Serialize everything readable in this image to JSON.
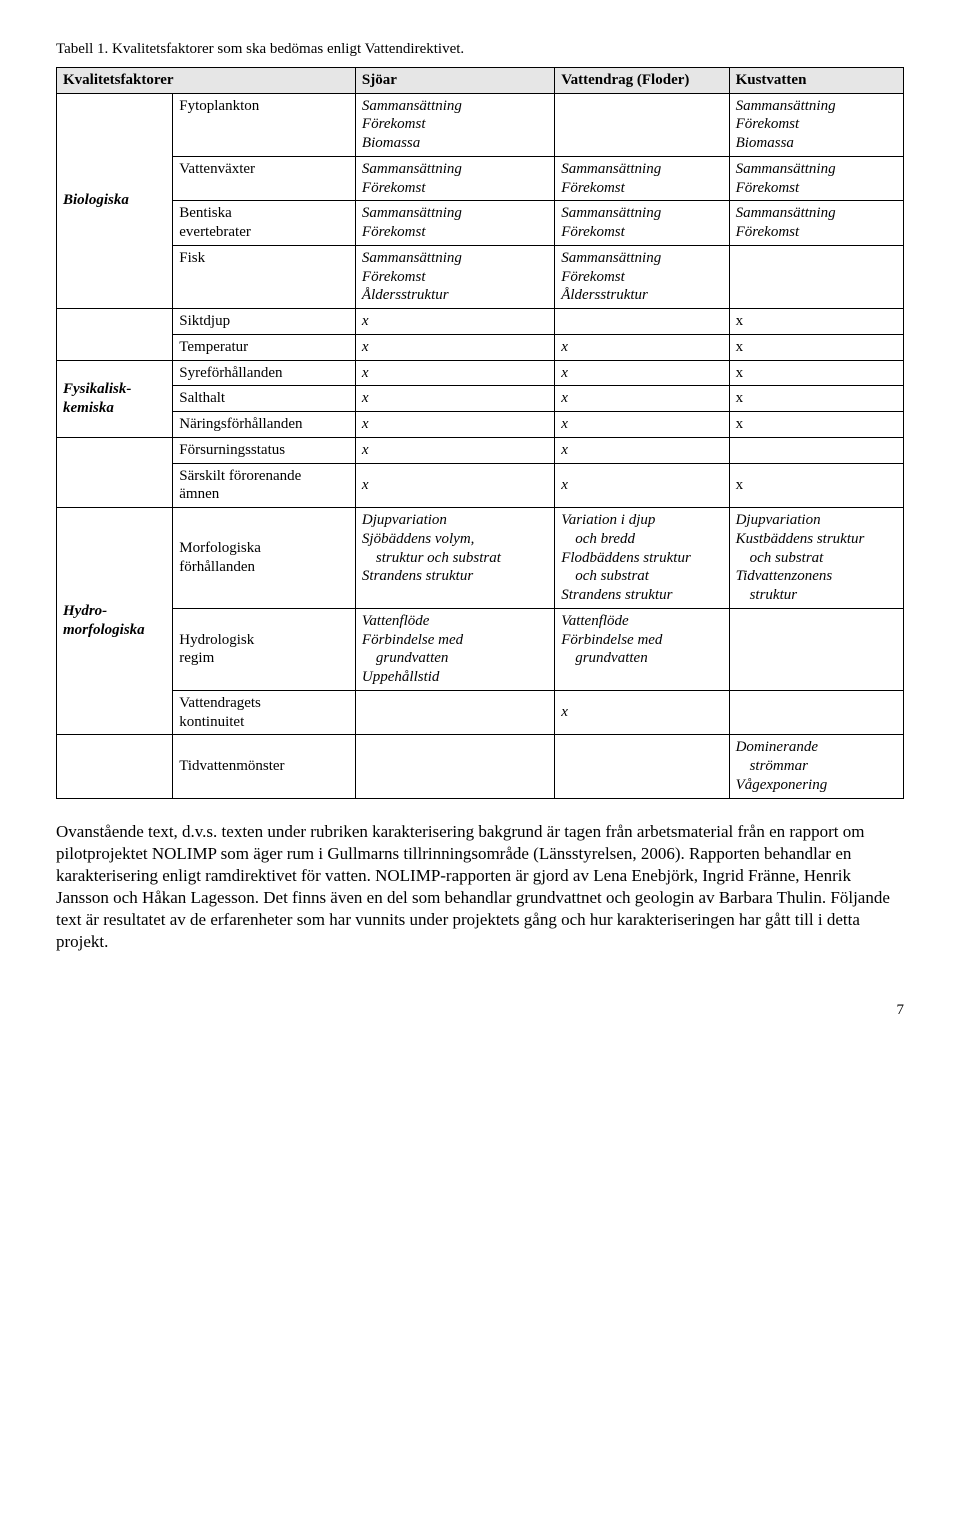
{
  "caption": "Tabell 1. Kvalitetsfaktorer som ska bedömas enligt Vattendirektivet.",
  "header": {
    "col0": "Kvalitetsfaktorer",
    "col1": "Sjöar",
    "col2": "Vattendrag (Floder)",
    "col3": "Kustvatten"
  },
  "groups": {
    "biologiska": "Biologiska",
    "fysikalisk": "Fysikalisk-kemiska",
    "hydro": "Hydro-morfologiska"
  },
  "rows": {
    "fytoplankton": {
      "label": "Fytoplankton",
      "sjoar": [
        "Sammansättning",
        "Förekomst",
        "Biomassa"
      ],
      "floder": [],
      "kust": [
        "Sammansättning",
        "Förekomst",
        "Biomassa"
      ]
    },
    "vattenvaxter": {
      "label": "Vattenväxter",
      "sjoar": [
        "Sammansättning",
        "Förekomst"
      ],
      "floder": [
        "Sammansättning",
        "Förekomst"
      ],
      "kust": [
        "Sammansättning",
        "Förekomst"
      ]
    },
    "bentiska": {
      "label1": "Bentiska",
      "label2": "evertebrater",
      "sjoar": [
        "Sammansättning",
        "Förekomst"
      ],
      "floder": [
        "Sammansättning",
        "Förekomst"
      ],
      "kust": [
        "Sammansättning",
        "Förekomst"
      ]
    },
    "fisk": {
      "label": "Fisk",
      "sjoar": [
        "Sammansättning",
        "Förekomst",
        "Åldersstruktur"
      ],
      "floder": [
        "Sammansättning",
        "Förekomst",
        "Åldersstruktur"
      ],
      "kust": []
    },
    "siktdjup": {
      "label": "Siktdjup",
      "sjoar": "x",
      "floder": "",
      "kust": "x"
    },
    "temperatur": {
      "label": "Temperatur",
      "sjoar": "x",
      "floder": "x",
      "kust": "x"
    },
    "syre": {
      "label": "Syreförhållanden",
      "sjoar": "x",
      "floder": "x",
      "kust": "x"
    },
    "salthalt": {
      "label": "Salthalt",
      "sjoar": "x",
      "floder": "x",
      "kust": "x"
    },
    "naring": {
      "label": "Näringsförhållanden",
      "sjoar": "x",
      "floder": "x",
      "kust": "x"
    },
    "forsurning": {
      "label": "Försurningsstatus",
      "sjoar": "x",
      "floder": "x",
      "kust": ""
    },
    "sarskilt": {
      "label1": "Särskilt förorenande",
      "label2": "ämnen",
      "sjoar": "x",
      "floder": "x",
      "kust": "x"
    },
    "morfo": {
      "label1": "Morfologiska",
      "label2": "förhållanden",
      "sjoar": [
        "Djupvariation",
        "Sjöbäddens volym,",
        "  struktur och substrat",
        "Strandens struktur"
      ],
      "floder": [
        "Variation i djup",
        "  och bredd",
        "Flodbäddens struktur",
        "  och substrat",
        "Strandens struktur"
      ],
      "kust": [
        "Djupvariation",
        "Kustbäddens struktur",
        "  och substrat",
        "Tidvattenzonens",
        "  struktur"
      ]
    },
    "hydroregim": {
      "label1": "Hydrologisk",
      "label2": "regim",
      "sjoar": [
        "Vattenflöde",
        "Förbindelse med",
        "  grundvatten",
        "Uppehållstid"
      ],
      "floder": [
        "Vattenflöde",
        "Förbindelse med",
        "  grundvatten"
      ],
      "kust": []
    },
    "kontinuitet": {
      "label1": "Vattendragets",
      "label2": "kontinuitet",
      "sjoar": "",
      "floder": "x",
      "kust": ""
    },
    "tidvatten": {
      "label": "Tidvattenmönster",
      "sjoar": "",
      "floder": "",
      "kust": [
        "Dominerande",
        "  strömmar",
        "Vågexponering"
      ]
    }
  },
  "bodytext": "Ovanstående text, d.v.s. texten under rubriken karakterisering bakgrund är tagen från arbetsmaterial från en rapport om pilotprojektet NOLIMP som äger rum i Gullmarns tillrinningsområde (Länsstyrelsen, 2006). Rapporten behandlar en karakterisering enligt ramdirektivet för vatten. NOLIMP-rapporten är gjord av Lena Enebjörk, Ingrid Fränne, Henrik Jansson och Håkan Lagesson. Det finns även en del som behandlar grundvattnet och geologin av Barbara Thulin. Följande text är resultatet av de erfarenheter som har vunnits under projektets gång och hur karakteriseringen har gått till i detta projekt.",
  "page_number": "7"
}
